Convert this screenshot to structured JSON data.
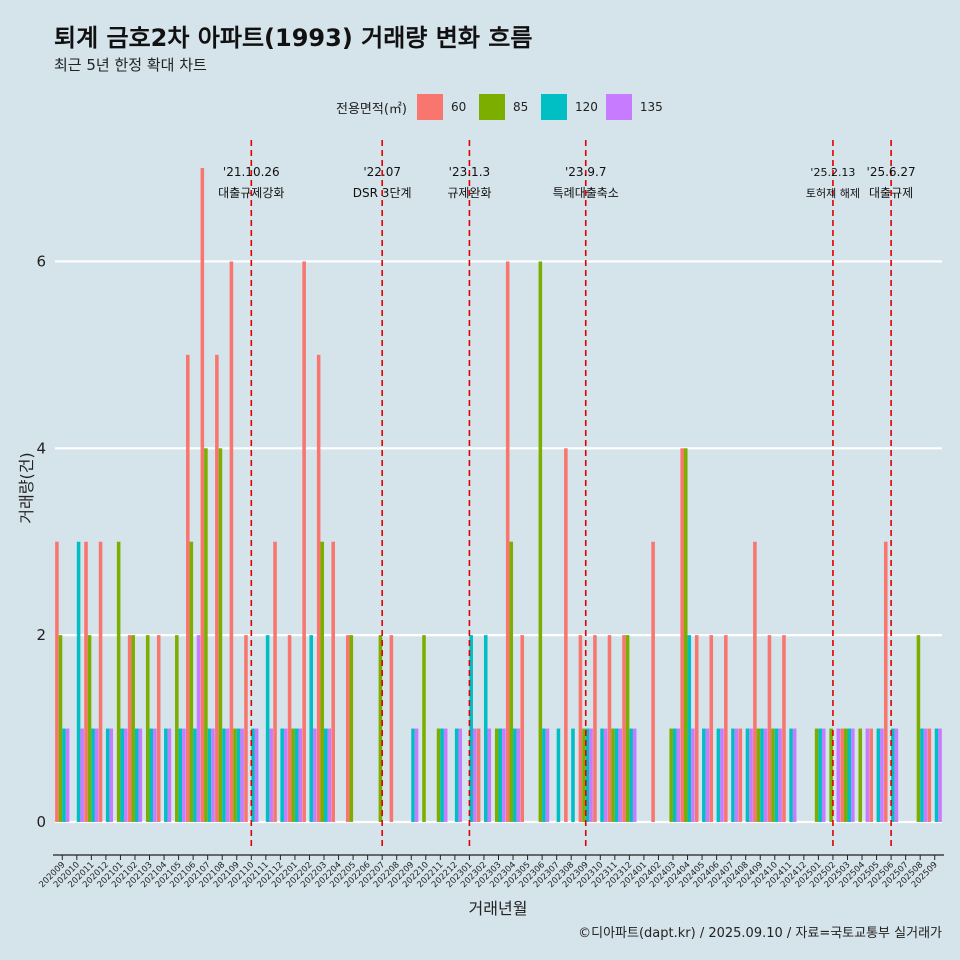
{
  "header": {
    "title": "퇴계 금호2차 아파트(1993) 거래량 변화 흐름",
    "subtitle": "최근 5년 한정 확대 차트"
  },
  "caption": "©디아파트(dapt.kr) / 2025.09.10 / 자료=국토교통부 실거래가",
  "chart_data": {
    "type": "bar",
    "xlabel": "거래년월",
    "ylabel": "거래량(건)",
    "ylim": [
      -0.3,
      7.3
    ],
    "yticks": [
      0,
      2,
      4,
      6
    ],
    "grid": true,
    "legend": {
      "title": "전용면적(㎡)",
      "placement": "top",
      "entries": [
        {
          "name": "60",
          "color": "#f8766d"
        },
        {
          "name": "85",
          "color": "#7cae00"
        },
        {
          "name": "120",
          "color": "#00bfc4"
        },
        {
          "name": "135",
          "color": "#c77cff"
        }
      ]
    },
    "categories": [
      "202009",
      "202010",
      "202011",
      "202012",
      "202101",
      "202102",
      "202103",
      "202104",
      "202105",
      "202106",
      "202107",
      "202108",
      "202109",
      "202110",
      "202111",
      "202112",
      "202201",
      "202202",
      "202203",
      "202204",
      "202205",
      "202206",
      "202207",
      "202208",
      "202209",
      "202210",
      "202211",
      "202212",
      "202301",
      "202302",
      "202303",
      "202304",
      "202305",
      "202306",
      "202307",
      "202308",
      "202309",
      "202310",
      "202311",
      "202312",
      "202401",
      "202402",
      "202403",
      "202404",
      "202405",
      "202406",
      "202407",
      "202408",
      "202409",
      "202410",
      "202411",
      "202412",
      "202501",
      "202502",
      "202503",
      "202504",
      "202505",
      "202506",
      "202507",
      "202508",
      "202509"
    ],
    "series": [
      {
        "name": "60",
        "values": [
          3,
          0,
          3,
          3,
          0,
          2,
          0,
          2,
          0,
          5,
          7,
          5,
          6,
          2,
          0,
          3,
          2,
          6,
          5,
          3,
          2,
          0,
          0,
          2,
          0,
          0,
          0,
          0,
          0,
          1,
          0,
          6,
          2,
          0,
          0,
          4,
          2,
          2,
          2,
          2,
          0,
          3,
          0,
          4,
          2,
          2,
          2,
          1,
          3,
          2,
          2,
          0,
          0,
          0,
          1,
          0,
          1,
          3,
          0,
          0,
          1
        ]
      },
      {
        "name": "85",
        "values": [
          2,
          0,
          2,
          0,
          3,
          2,
          2,
          0,
          2,
          3,
          4,
          4,
          1,
          0,
          0,
          0,
          1,
          0,
          3,
          0,
          2,
          0,
          2,
          0,
          0,
          2,
          1,
          0,
          0,
          0,
          1,
          3,
          0,
          6,
          0,
          0,
          1,
          0,
          1,
          2,
          0,
          0,
          1,
          4,
          0,
          0,
          0,
          0,
          1,
          1,
          0,
          0,
          1,
          1,
          1,
          1,
          0,
          0,
          0,
          2,
          0
        ]
      },
      {
        "name": "120",
        "values": [
          1,
          3,
          1,
          1,
          1,
          1,
          1,
          1,
          1,
          1,
          1,
          1,
          1,
          1,
          2,
          1,
          1,
          2,
          1,
          0,
          0,
          0,
          0,
          0,
          1,
          0,
          1,
          1,
          2,
          2,
          1,
          1,
          0,
          1,
          1,
          1,
          1,
          1,
          1,
          1,
          0,
          0,
          1,
          2,
          1,
          1,
          1,
          1,
          1,
          1,
          1,
          0,
          1,
          0,
          1,
          0,
          1,
          1,
          0,
          1,
          1
        ]
      },
      {
        "name": "135",
        "values": [
          1,
          1,
          1,
          1,
          1,
          1,
          1,
          1,
          1,
          2,
          1,
          1,
          1,
          1,
          1,
          1,
          1,
          1,
          1,
          0,
          0,
          0,
          0,
          0,
          1,
          0,
          1,
          1,
          1,
          1,
          1,
          1,
          0,
          1,
          0,
          0,
          1,
          1,
          1,
          1,
          0,
          0,
          1,
          1,
          1,
          1,
          1,
          1,
          1,
          1,
          1,
          0,
          1,
          1,
          1,
          1,
          1,
          1,
          0,
          1,
          1
        ]
      }
    ],
    "annotations": [
      {
        "x": "202110",
        "date": "'21.10.26",
        "label": "대출규제강화"
      },
      {
        "x": "202207",
        "date": "'22.07",
        "label": "DSR 3단계"
      },
      {
        "x": "202301",
        "date": "'23.1.3",
        "label": "규제완화"
      },
      {
        "x": "202309",
        "date": "'23.9.7",
        "label": "특례대출축소"
      },
      {
        "x": "202502",
        "date": "'25.2.13",
        "label": "토허제 해제"
      },
      {
        "x": "202506",
        "date": "'25.6.27",
        "label": "대출규제"
      }
    ]
  }
}
